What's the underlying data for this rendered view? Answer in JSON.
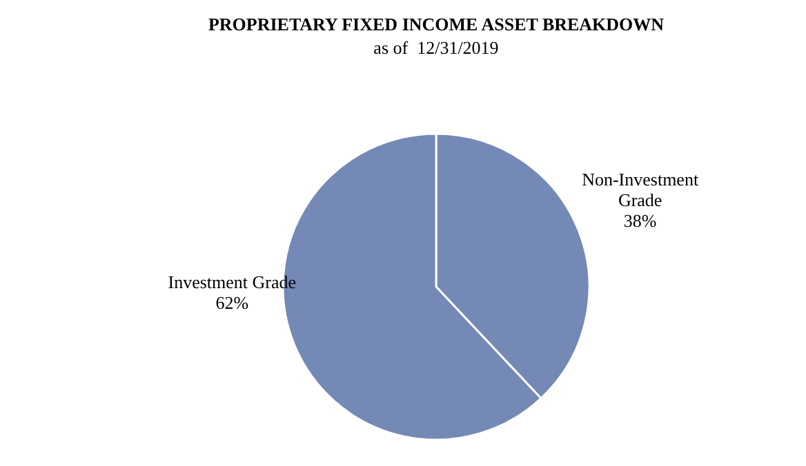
{
  "chart_data": {
    "type": "pie",
    "title": "PROPRIETARY FIXED INCOME ASSET BREAKDOWN",
    "subtitle": "as of  12/31/2019",
    "categories": [
      "Non-Investment Grade",
      "Investment Grade"
    ],
    "values": [
      38,
      62
    ],
    "colors": [
      "#7489b5",
      "#7489b5"
    ],
    "value_labels": [
      "38%",
      "62%"
    ]
  }
}
